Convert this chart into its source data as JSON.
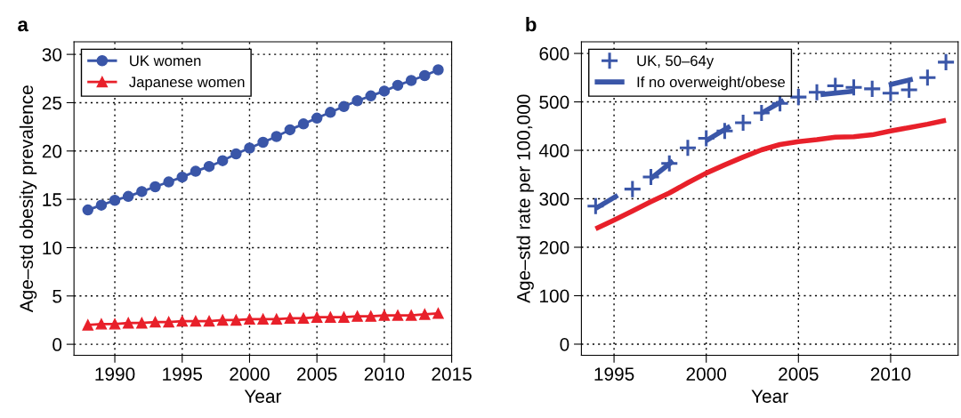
{
  "chart_data": [
    {
      "type": "line",
      "title": "a",
      "xlabel": "Year",
      "ylabel": "Age–std obesity prevalence",
      "x": [
        1988,
        1989,
        1990,
        1991,
        1992,
        1993,
        1994,
        1995,
        1996,
        1997,
        1998,
        1999,
        2000,
        2001,
        2002,
        2003,
        2004,
        2005,
        2006,
        2007,
        2008,
        2009,
        2010,
        2011,
        2012,
        2013,
        2014
      ],
      "series": [
        {
          "name": "UK women",
          "color": "#3a56a8",
          "marker": "circle",
          "values": [
            13.9,
            14.4,
            14.9,
            15.3,
            15.8,
            16.3,
            16.8,
            17.3,
            17.9,
            18.4,
            19.0,
            19.7,
            20.3,
            20.9,
            21.5,
            22.2,
            22.8,
            23.4,
            24.0,
            24.6,
            25.2,
            25.7,
            26.2,
            26.8,
            27.3,
            27.8,
            28.4
          ]
        },
        {
          "name": "Japanese women",
          "color": "#e8202a",
          "marker": "triangle",
          "values": [
            2.0,
            2.1,
            2.1,
            2.2,
            2.2,
            2.3,
            2.3,
            2.4,
            2.4,
            2.4,
            2.5,
            2.5,
            2.6,
            2.6,
            2.6,
            2.7,
            2.7,
            2.8,
            2.8,
            2.8,
            2.9,
            2.9,
            3.0,
            3.0,
            3.0,
            3.1,
            3.2
          ]
        }
      ],
      "xlim": [
        1986.97,
        2015
      ],
      "xticks": [
        1990,
        1995,
        2000,
        2005,
        2010,
        2015
      ],
      "ylim": [
        -1.14,
        31.3
      ],
      "yticks": [
        0,
        5,
        10,
        15,
        20,
        25,
        30
      ],
      "grid": true,
      "legend": "top left"
    },
    {
      "type": "line",
      "title": "b",
      "xlabel": "Year",
      "ylabel": "Age–std rate per 100,000",
      "series": [
        {
          "name": "UK, 50–64y",
          "type": "scatter",
          "color": "#3a56a8",
          "marker": "cross",
          "x": [
            1994,
            1996,
            1997,
            1998,
            1999,
            2000,
            2001,
            2002,
            2003,
            2004,
            2005,
            2006,
            2007,
            2008,
            2009,
            2010,
            2011,
            2012,
            2013
          ],
          "values": [
            285,
            320,
            345,
            373,
            405,
            425,
            440,
            457,
            477,
            497,
            510,
            520,
            533,
            530,
            527,
            518,
            525,
            550,
            582
          ]
        },
        {
          "name": "If no overweight/obese",
          "type": "line",
          "color": "#3a56a8",
          "x": [
            1994,
            1995.2,
            1996,
            1997,
            1998.2,
            1999,
            2000,
            2001.3,
            2002,
            2003,
            2004.2,
            2005,
            2006.2,
            2008,
            2009,
            2009.9,
            2011.2
          ],
          "values": [
            280,
            307,
            null,
            342,
            378,
            null,
            420,
            450,
            null,
            477,
            503,
            null,
            515,
            522,
            null,
            535,
            547
          ]
        },
        {
          "type": "line",
          "color": "#e8202a",
          "x": [
            1994,
            1995,
            1996,
            1997,
            1998,
            1999,
            2000,
            2001,
            2002,
            2003,
            2004,
            2005,
            2006,
            2007,
            2008,
            2009,
            2010,
            2011,
            2012,
            2013
          ],
          "values": [
            238,
            256,
            275,
            294,
            312,
            333,
            353,
            370,
            386,
            401,
            412,
            418,
            422,
            427,
            428,
            432,
            440,
            447,
            454,
            462
          ]
        }
      ],
      "xlim": [
        1993.23,
        2013.66
      ],
      "xticks": [
        1995,
        2000,
        2005,
        2010
      ],
      "ylim": [
        -23,
        624
      ],
      "yticks": [
        0,
        100,
        200,
        300,
        400,
        500,
        600
      ],
      "grid": true,
      "legend": "top left"
    }
  ]
}
